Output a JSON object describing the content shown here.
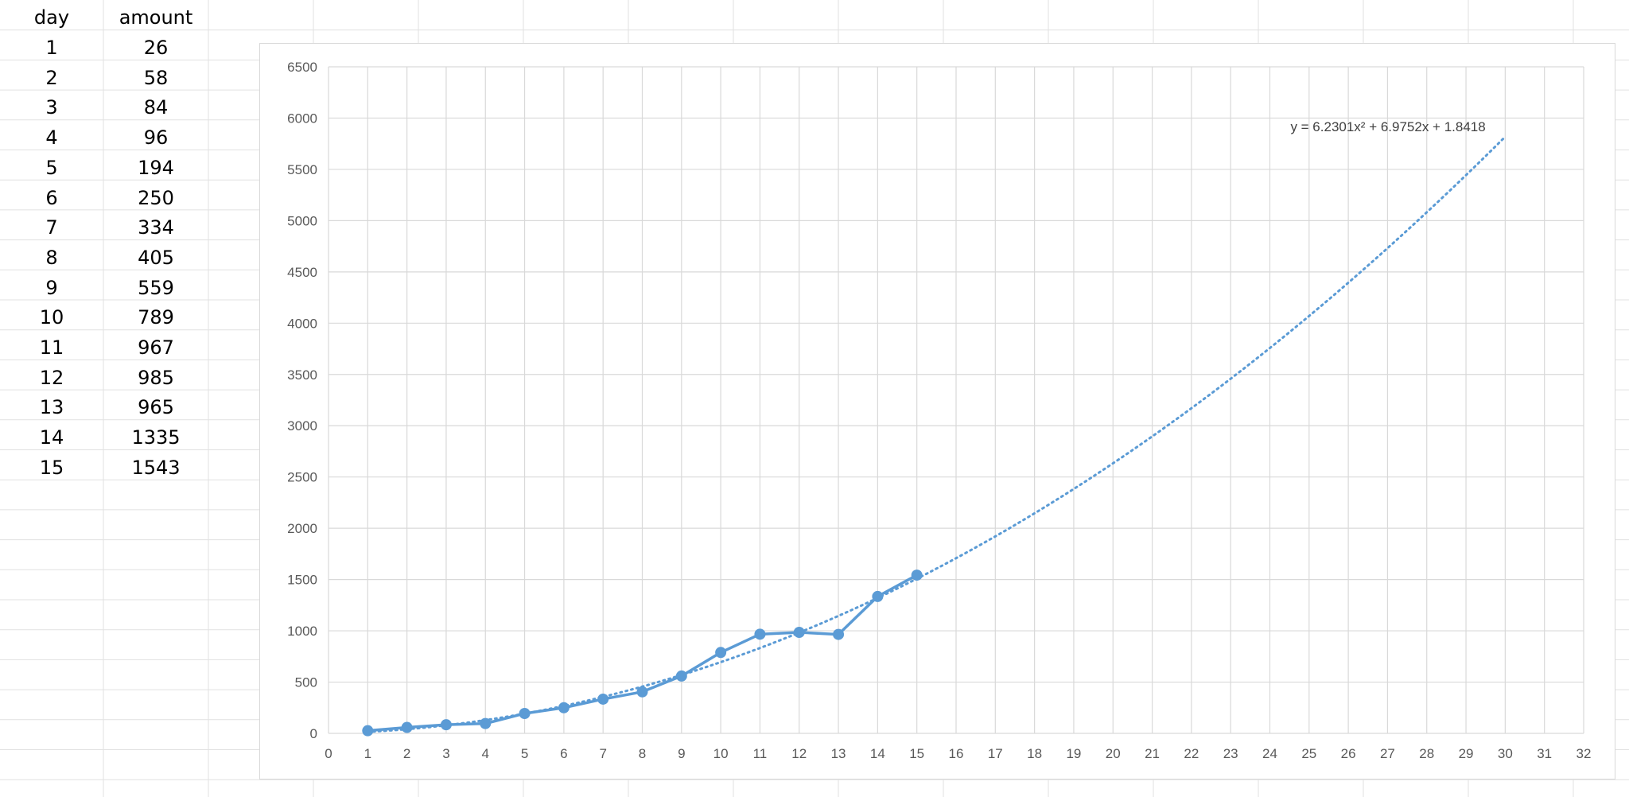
{
  "table": {
    "headers": [
      "day",
      "amount"
    ],
    "rows": [
      [
        "1",
        "26"
      ],
      [
        "2",
        "58"
      ],
      [
        "3",
        "84"
      ],
      [
        "4",
        "96"
      ],
      [
        "5",
        "194"
      ],
      [
        "6",
        "250"
      ],
      [
        "7",
        "334"
      ],
      [
        "8",
        "405"
      ],
      [
        "9",
        "559"
      ],
      [
        "10",
        "789"
      ],
      [
        "11",
        "967"
      ],
      [
        "12",
        "985"
      ],
      [
        "13",
        "965"
      ],
      [
        "14",
        "1335"
      ],
      [
        "15",
        "1543"
      ]
    ]
  },
  "colors": {
    "series": "#5b9bd5",
    "grid": "#d9d9d9",
    "sheet_grid": "#e1e1e1",
    "tick_text": "#595959"
  },
  "chart_data": {
    "type": "scatter",
    "title": "",
    "xlabel": "",
    "ylabel": "",
    "xlim": [
      0,
      32
    ],
    "ylim": [
      0,
      6500
    ],
    "x_ticks": [
      0,
      1,
      2,
      3,
      4,
      5,
      6,
      7,
      8,
      9,
      10,
      11,
      12,
      13,
      14,
      15,
      16,
      17,
      18,
      19,
      20,
      21,
      22,
      23,
      24,
      25,
      26,
      27,
      28,
      29,
      30,
      31,
      32
    ],
    "y_ticks": [
      0,
      500,
      1000,
      1500,
      2000,
      2500,
      3000,
      3500,
      4000,
      4500,
      5000,
      5500,
      6000,
      6500
    ],
    "grid": true,
    "legend": "none",
    "series": [
      {
        "x": [
          1,
          2,
          3,
          4,
          5,
          6,
          7,
          8,
          9,
          10,
          11,
          12,
          13,
          14,
          15
        ],
        "values": [
          26,
          58,
          84,
          96,
          194,
          250,
          334,
          405,
          559,
          789,
          967,
          985,
          965,
          1335,
          1543
        ],
        "style": "line-markers"
      }
    ],
    "trendline": {
      "type": "polynomial",
      "order": 2,
      "coefficients": [
        6.2301,
        6.9752,
        1.8418
      ],
      "x_range": [
        1,
        30
      ],
      "style": "dotted",
      "equation_label": "y = 6.2301x² + 6.9752x + 1.8418"
    }
  }
}
